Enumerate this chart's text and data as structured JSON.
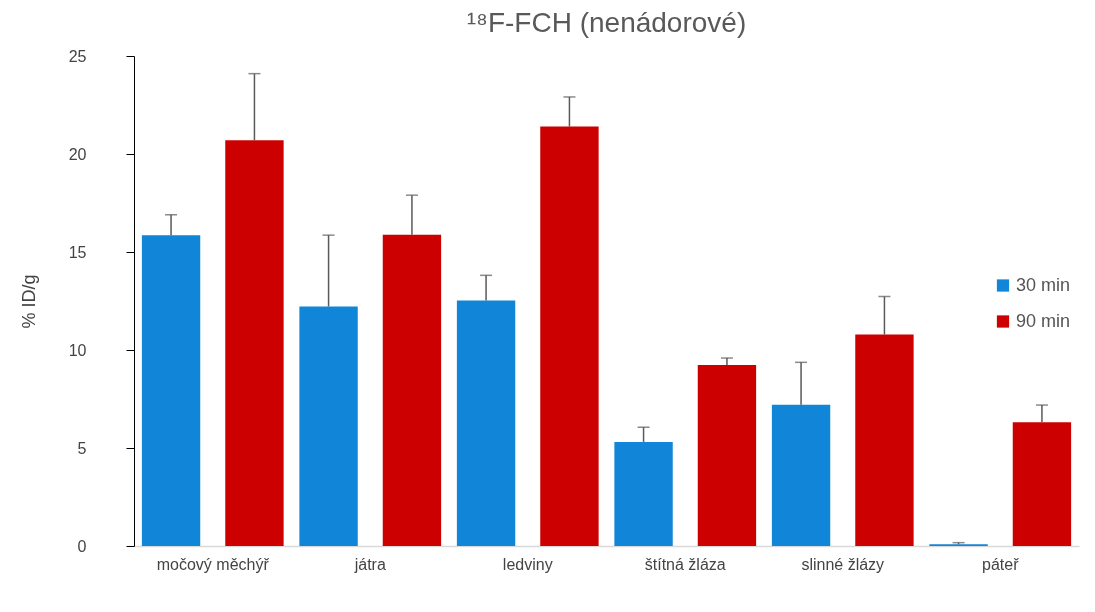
{
  "chart_data": {
    "type": "bar",
    "title": "¹⁸F-FCH (nenádorové)",
    "ylabel": "% ID/g",
    "categories": [
      "močový měchýř",
      "játra",
      "ledviny",
      "štítná žláza",
      "slinné žlázy",
      "páteř"
    ],
    "series": [
      {
        "name": "30 min",
        "color": "#1185d7",
        "values": [
          15.86,
          12.22,
          12.52,
          5.31,
          7.21,
          0.09
        ],
        "errors": [
          [
            15.86,
            16.9
          ],
          [
            12.22,
            15.86
          ],
          [
            12.52,
            13.81
          ],
          [
            5.31,
            6.06
          ],
          [
            7.21,
            9.37
          ],
          [
            0.09,
            0.17
          ]
        ]
      },
      {
        "name": "90 min",
        "color": "#cc0000",
        "values": [
          20.7,
          15.88,
          21.4,
          9.24,
          10.79,
          6.32
        ],
        "errors": [
          [
            20.7,
            24.1
          ],
          [
            15.88,
            17.9
          ],
          [
            21.4,
            22.91
          ],
          [
            9.24,
            9.59
          ],
          [
            10.79,
            12.73
          ],
          [
            6.32,
            7.19
          ]
        ]
      }
    ],
    "ylim": [
      0,
      25
    ],
    "yticks": [
      0,
      5,
      10,
      15,
      20,
      25
    ],
    "grid": false,
    "legend": "right"
  }
}
